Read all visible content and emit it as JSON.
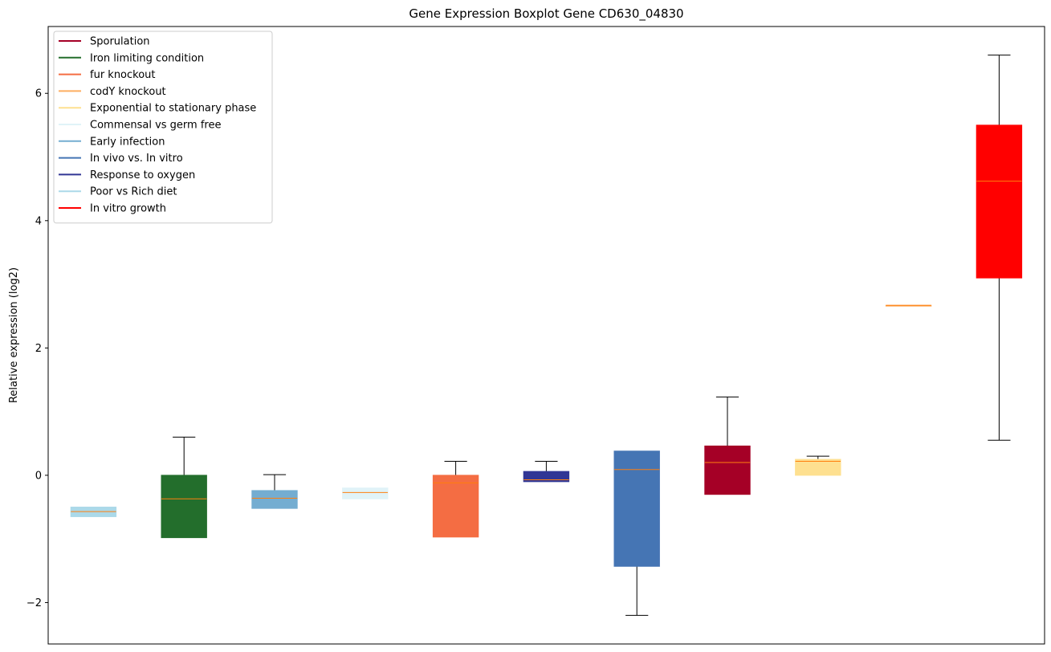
{
  "chart_data": {
    "type": "boxplot",
    "title": "Gene Expression Boxplot Gene CD630_04830",
    "xlabel": "",
    "ylabel": "Relative expression (log2)",
    "ylim": [
      -2.65,
      7.05
    ],
    "yticks": [
      {
        "value": -2,
        "label": "−2"
      },
      {
        "value": 0,
        "label": "0"
      },
      {
        "value": 2,
        "label": "2"
      },
      {
        "value": 4,
        "label": "4"
      },
      {
        "value": 6,
        "label": "6"
      }
    ],
    "grid": false,
    "legend_position": "top-left",
    "legend": [
      {
        "name": "Sporulation",
        "color": "#a50026"
      },
      {
        "name": "Iron limiting condition",
        "color": "#236e2c"
      },
      {
        "name": "fur knockout",
        "color": "#f46d43"
      },
      {
        "name": "codY knockout",
        "color": "#fdae61"
      },
      {
        "name": "Exponential to stationary phase",
        "color": "#fee090"
      },
      {
        "name": "Commensal vs germ free",
        "color": "#e0f3f8"
      },
      {
        "name": "Early infection",
        "color": "#74add1"
      },
      {
        "name": "In vivo vs. In vitro",
        "color": "#4575b4"
      },
      {
        "name": "Response to oxygen",
        "color": "#313695"
      },
      {
        "name": "Poor vs Rich diet",
        "color": "#abd9e9"
      },
      {
        "name": "In vitro growth",
        "color": "#ff0000"
      }
    ],
    "boxes": [
      {
        "color": "#abd9e9",
        "whisker_low": -0.65,
        "q1": -0.65,
        "median": -0.57,
        "q3": -0.5,
        "whisker_high": -0.5
      },
      {
        "color": "#236e2c",
        "whisker_low": -0.98,
        "q1": -0.98,
        "median": -0.37,
        "q3": 0.0,
        "whisker_high": 0.6
      },
      {
        "color": "#74add1",
        "whisker_low": -0.52,
        "q1": -0.52,
        "median": -0.36,
        "q3": -0.24,
        "whisker_high": 0.01
      },
      {
        "color": "#e0f3f8",
        "whisker_low": -0.37,
        "q1": -0.37,
        "median": -0.27,
        "q3": -0.2,
        "whisker_high": -0.2
      },
      {
        "color": "#f46d43",
        "whisker_low": -0.97,
        "q1": -0.97,
        "median": -0.12,
        "q3": 0.0,
        "whisker_high": 0.22
      },
      {
        "color": "#313695",
        "whisker_low": -0.1,
        "q1": -0.1,
        "median": -0.07,
        "q3": 0.06,
        "whisker_high": 0.22
      },
      {
        "color": "#4575b4",
        "whisker_low": -2.2,
        "q1": -1.43,
        "median": 0.09,
        "q3": 0.38,
        "whisker_high": 0.38
      },
      {
        "color": "#a50026",
        "whisker_low": -0.3,
        "q1": -0.3,
        "median": 0.2,
        "q3": 0.46,
        "whisker_high": 1.23
      },
      {
        "color": "#fee090",
        "whisker_low": 0.0,
        "q1": 0.0,
        "median": 0.22,
        "q3": 0.25,
        "whisker_high": 0.3
      },
      {
        "color": "#fdae61",
        "whisker_low": 2.67,
        "q1": 2.67,
        "median": 2.67,
        "q3": 2.67,
        "whisker_high": 2.67
      },
      {
        "color": "#ff0000",
        "whisker_low": 0.55,
        "q1": 3.1,
        "median": 4.62,
        "q3": 5.5,
        "whisker_high": 6.6
      }
    ],
    "median_color": "#ff7f0e"
  }
}
